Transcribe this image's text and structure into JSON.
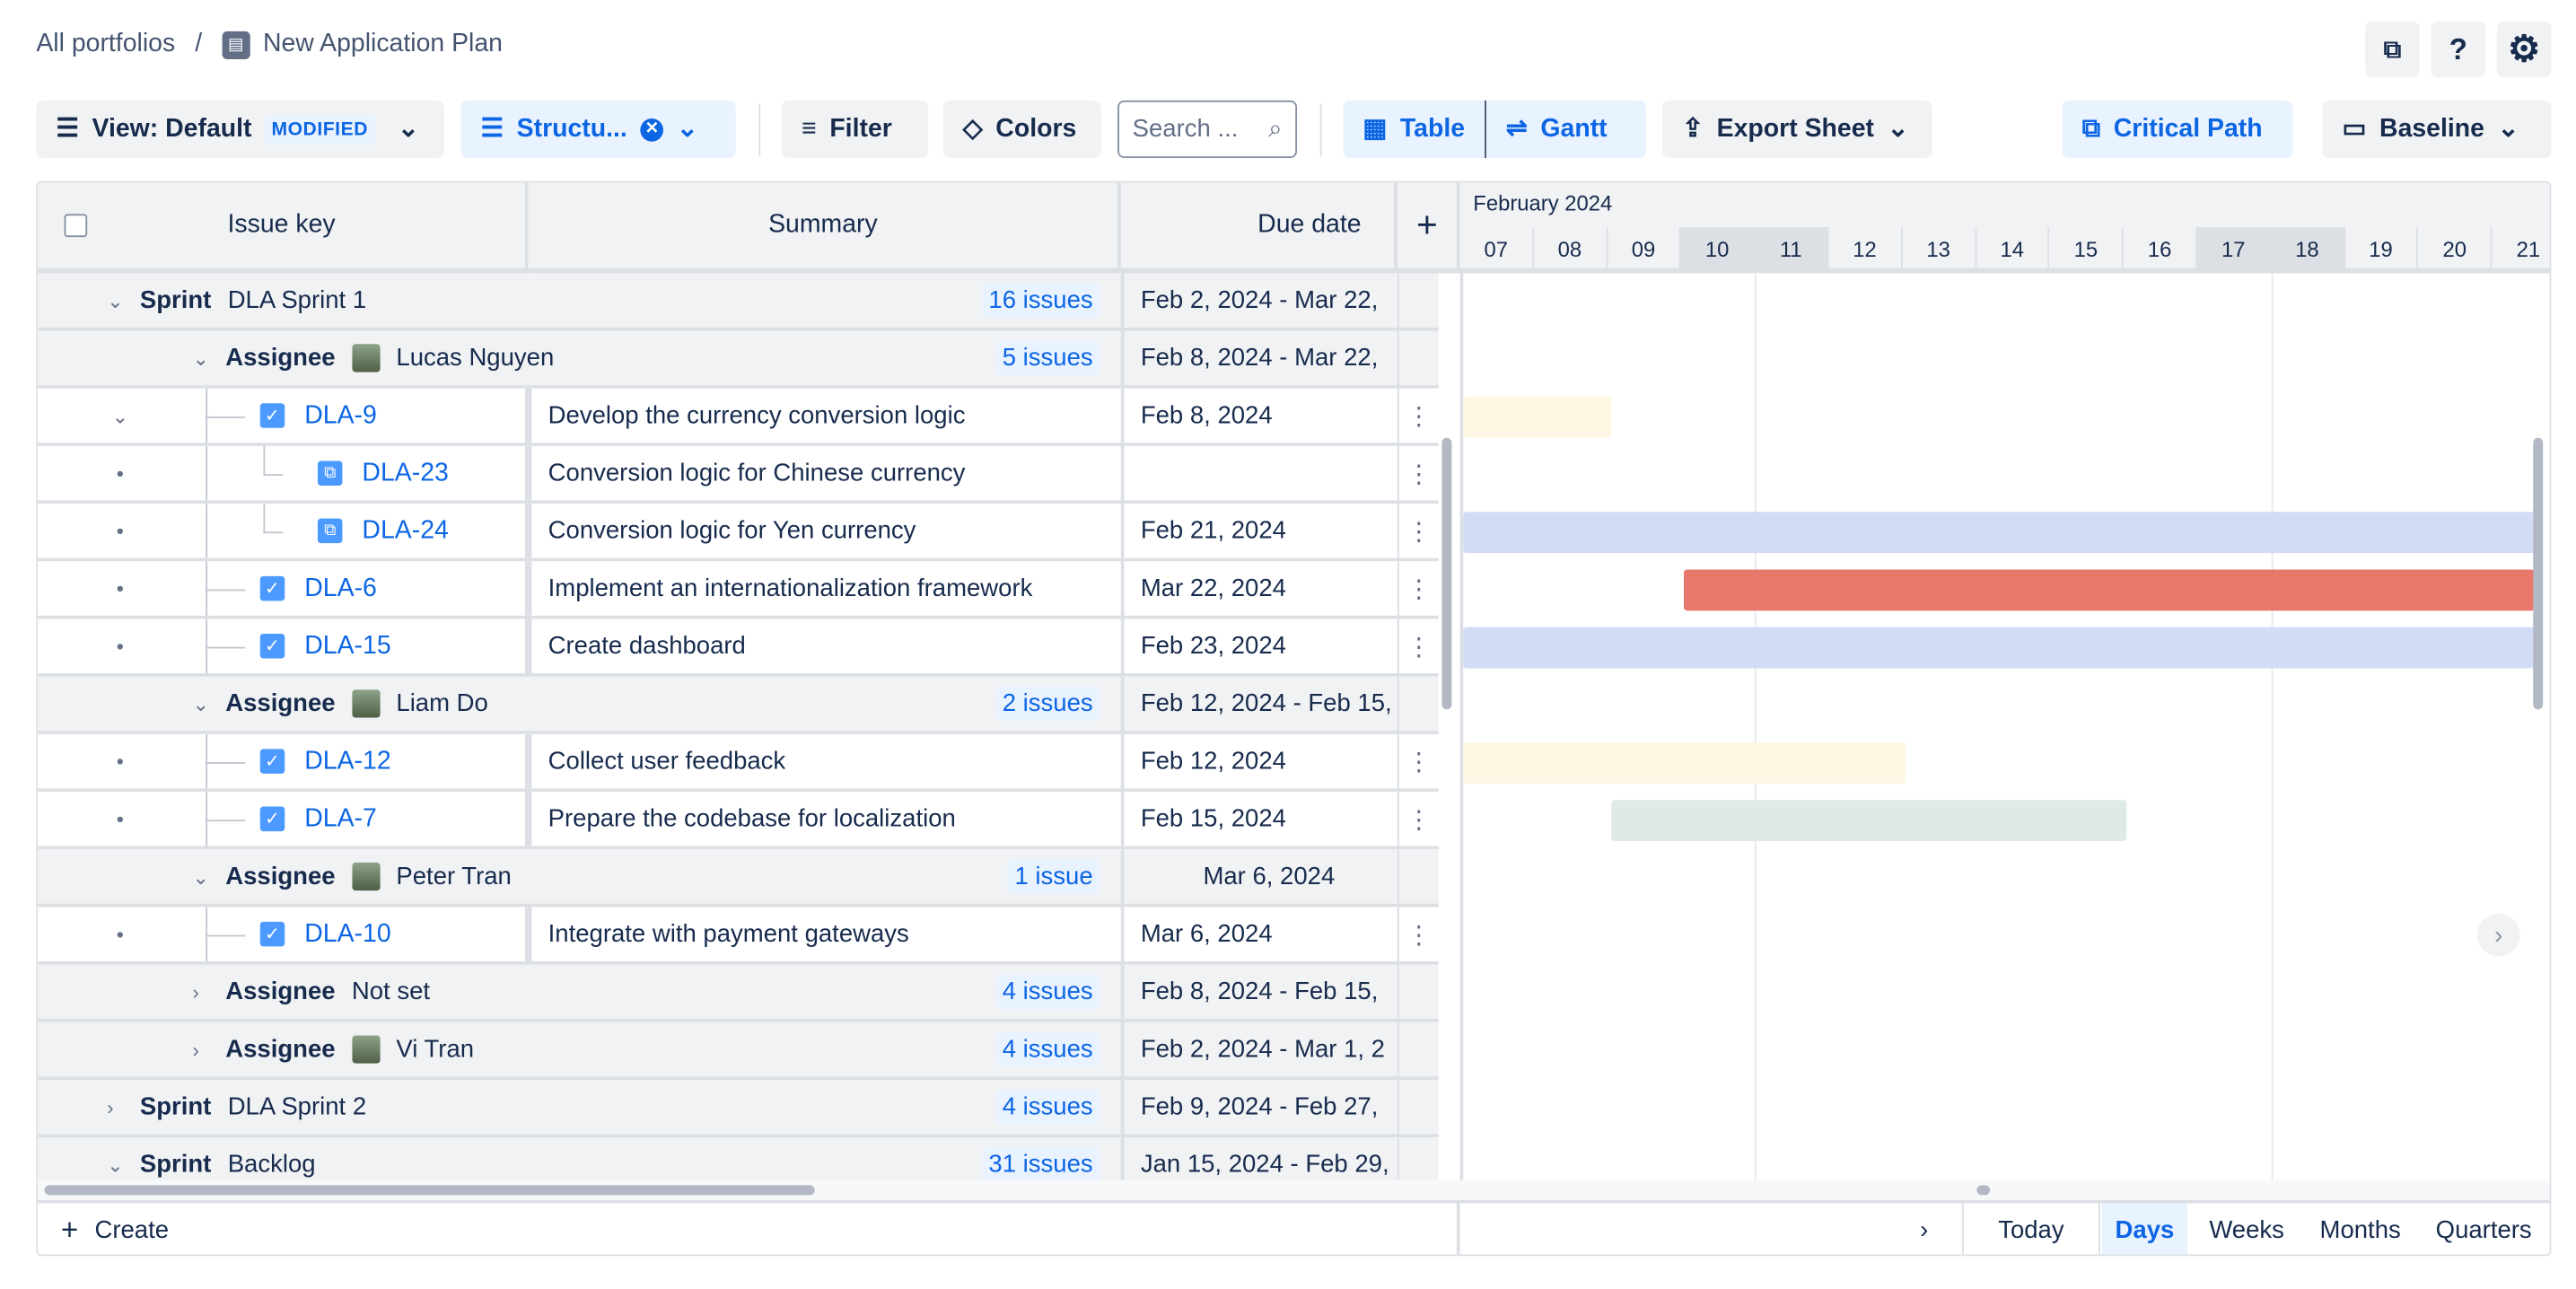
{
  "breadcrumb": {
    "root": "All portfolios",
    "separator": "/",
    "plan": "New Application Plan"
  },
  "top_icons": [
    "feedback-icon",
    "help-icon",
    "settings-icon"
  ],
  "toolbar": {
    "view_label": "View: Default",
    "view_badge": "MODIFIED",
    "structure_label": "Structu...",
    "filter_label": "Filter",
    "colors_label": "Colors",
    "search_placeholder": "Search ...",
    "table_label": "Table",
    "gantt_label": "Gantt",
    "export_label": "Export Sheet",
    "critical_path_label": "Critical Path",
    "baseline_label": "Baseline"
  },
  "columns": {
    "issue_key": "Issue key",
    "summary": "Summary",
    "due_date": "Due date",
    "add": "+"
  },
  "timeline": {
    "month": "February 2024",
    "days": [
      "07",
      "08",
      "09",
      "10",
      "11",
      "12",
      "13",
      "14",
      "15",
      "16",
      "17",
      "18",
      "19",
      "20",
      "21"
    ],
    "weekend_days": [
      "10",
      "11",
      "17",
      "18"
    ]
  },
  "rows": [
    {
      "type": "sprint",
      "expanded": true,
      "label": "Sprint",
      "name": "DLA Sprint 1",
      "count": "16 issues",
      "due": "Feb 2, 2024 - Mar 22,"
    },
    {
      "type": "assignee",
      "expanded": true,
      "label": "Assignee",
      "name": "Lucas Nguyen",
      "count": "5 issues",
      "due": "Feb 8, 2024 - Mar 22,",
      "avatar": true
    },
    {
      "type": "issue",
      "level": 1,
      "expandable": true,
      "key": "DLA-9",
      "summary": "Develop the currency conversion logic",
      "due": "Feb 8, 2024",
      "bar": {
        "start": "07",
        "end": "08",
        "color": "#fdf7e4"
      }
    },
    {
      "type": "issue",
      "level": 2,
      "key": "DLA-23",
      "summary": "Conversion logic for Chinese currency",
      "due": ""
    },
    {
      "type": "issue",
      "level": 2,
      "key": "DLA-24",
      "summary": "Conversion logic for Yen currency",
      "due": "Feb 21, 2024",
      "bar": {
        "start": "07",
        "end": "21",
        "color": "#d3dcf6"
      }
    },
    {
      "type": "issue",
      "level": 1,
      "key": "DLA-6",
      "summary": "Implement an internationalization framework",
      "due": "Mar 22, 2024",
      "bar": {
        "start": "10",
        "end": "21",
        "color": "#e8786c"
      }
    },
    {
      "type": "issue",
      "level": 1,
      "key": "DLA-15",
      "summary": "Create dashboard",
      "due": "Feb 23, 2024",
      "bar": {
        "start": "07",
        "end": "21",
        "color": "#d3dcf6"
      }
    },
    {
      "type": "assignee",
      "expanded": true,
      "label": "Assignee",
      "name": "Liam Do",
      "count": "2 issues",
      "due": "Feb 12, 2024 - Feb 15,",
      "avatar": true
    },
    {
      "type": "issue",
      "level": 1,
      "key": "DLA-12",
      "summary": "Collect user feedback",
      "due": "Feb 12, 2024",
      "bar": {
        "start": "07",
        "end": "12",
        "color": "#fdf7e4"
      }
    },
    {
      "type": "issue",
      "level": 1,
      "key": "DLA-7",
      "summary": "Prepare the codebase for localization",
      "due": "Feb 15, 2024",
      "bar": {
        "start": "09",
        "end": "15",
        "color": "#dfe9e8"
      }
    },
    {
      "type": "assignee",
      "expanded": true,
      "label": "Assignee",
      "name": "Peter Tran",
      "count": "1 issue",
      "due": "Mar 6, 2024",
      "avatar": true
    },
    {
      "type": "issue",
      "level": 1,
      "key": "DLA-10",
      "summary": "Integrate with payment gateways",
      "due": "Mar 6, 2024"
    },
    {
      "type": "assignee",
      "expanded": false,
      "label": "Assignee",
      "name": "Not set",
      "count": "4 issues",
      "due": "Feb 8, 2024 - Feb 15,"
    },
    {
      "type": "assignee",
      "expanded": false,
      "label": "Assignee",
      "name": "Vi Tran",
      "count": "4 issues",
      "due": "Feb 2, 2024 - Mar 1, 2",
      "avatar": true
    },
    {
      "type": "sprint",
      "expanded": false,
      "label": "Sprint",
      "name": "DLA Sprint 2",
      "count": "4 issues",
      "due": "Feb 9, 2024 - Feb 27,"
    },
    {
      "type": "sprint",
      "expanded": true,
      "label": "Sprint",
      "name": "Backlog",
      "count": "31 issues",
      "due": "Jan 15, 2024 - Feb 29,"
    }
  ],
  "footer": {
    "create_label": "Create",
    "today_label": "Today",
    "zoom_options": [
      "Days",
      "Weeks",
      "Months",
      "Quarters"
    ],
    "zoom_selected": "Days"
  }
}
